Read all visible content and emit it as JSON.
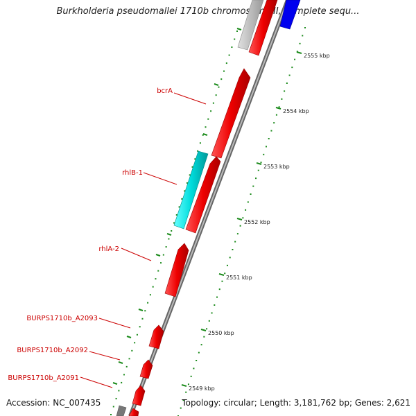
{
  "title": "Burkholderia pseudomallei 1710b chromosome II, complete sequ...",
  "footer": {
    "accession": "Accession: NC_007435",
    "topology": "Topology: circular; Length: 3,181,762 bp; Genes: 2,621"
  },
  "genes": [
    {
      "label": "bcrA"
    },
    {
      "label": "rhlB-1"
    },
    {
      "label": "rhlA-2"
    },
    {
      "label": "BURPS1710b_A2093"
    },
    {
      "label": "BURPS1710b_A2092"
    },
    {
      "label": "BURPS1710b_A2091"
    }
  ],
  "ticks": [
    "2555 kbp",
    "2554 kbp",
    "2553 kbp",
    "2552 kbp",
    "2551 kbp",
    "2550 kbp",
    "2549 kbp"
  ],
  "colors": {
    "gene_red": "#ee0000",
    "gene_cyan": "#00dddd",
    "gene_blue": "#0000ee",
    "gene_gray": "#bbbbbb",
    "backbone": "#999999",
    "tick_green": "#1a8a1a",
    "label_red": "#cc0000"
  }
}
